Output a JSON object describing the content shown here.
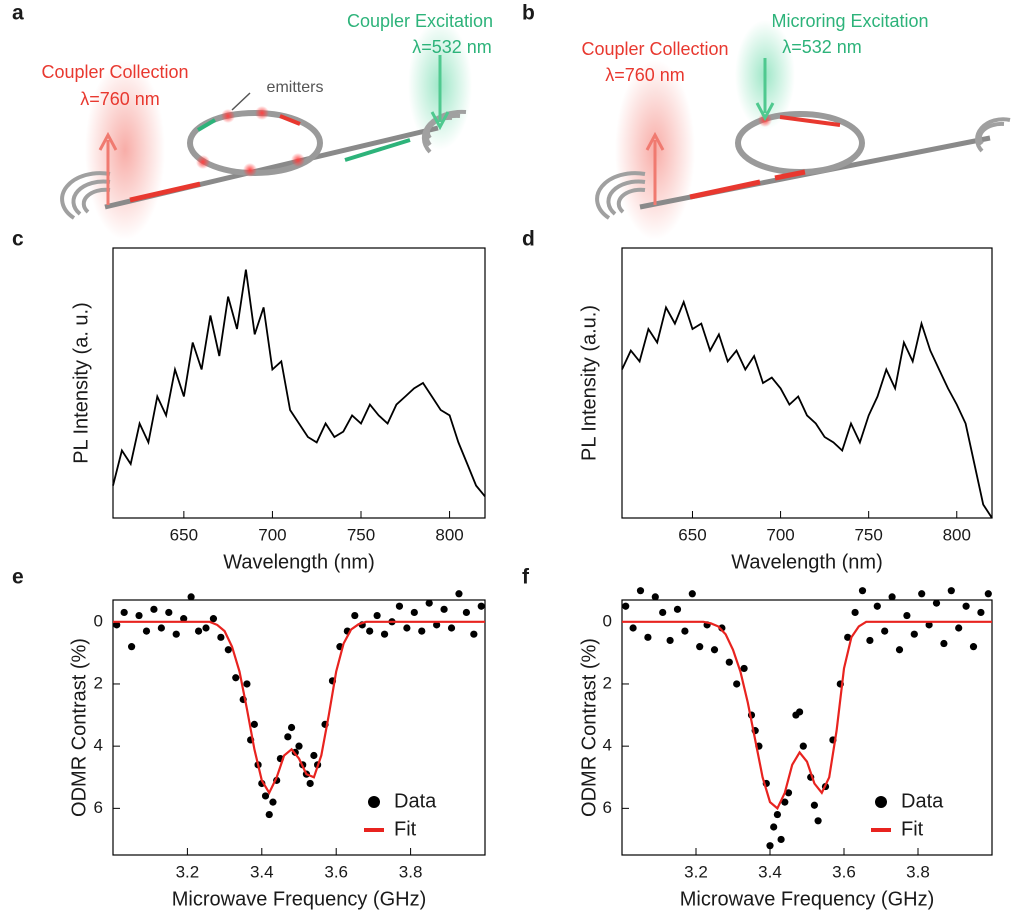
{
  "diagrams": [
    {
      "label": "a",
      "collection": "Coupler Collection",
      "collection_wavelength": "λ=760 nm",
      "emitters": "emitters",
      "excitation": "Coupler Excitation",
      "excitation_wavelength": "λ=532 nm"
    },
    {
      "label": "b",
      "collection": "Coupler Collection",
      "collection_wavelength": "λ=760 nm",
      "excitation": "Microring Excitation",
      "excitation_wavelength": "λ=532 nm"
    }
  ],
  "chart_data": [
    {
      "type": "line",
      "label": "c",
      "xlabel": "Wavelength (nm)",
      "ylabel": "PL Intensity (a. u.)",
      "color": "#000000",
      "x": [
        610,
        615,
        620,
        625,
        630,
        635,
        640,
        645,
        650,
        655,
        660,
        665,
        670,
        675,
        680,
        685,
        690,
        695,
        700,
        705,
        710,
        715,
        720,
        725,
        730,
        735,
        740,
        745,
        750,
        755,
        760,
        765,
        770,
        775,
        780,
        785,
        790,
        795,
        800,
        805,
        810,
        815,
        820
      ],
      "values": [
        12,
        25,
        20,
        35,
        28,
        45,
        38,
        55,
        45,
        65,
        55,
        75,
        60,
        82,
        70,
        92,
        68,
        78,
        55,
        58,
        40,
        35,
        30,
        28,
        35,
        30,
        32,
        38,
        35,
        42,
        38,
        35,
        42,
        45,
        48,
        50,
        45,
        40,
        38,
        28,
        20,
        12,
        8
      ],
      "xlim": [
        610,
        820
      ],
      "ylim": [
        0,
        100
      ],
      "xticks": [
        650,
        700,
        750,
        800
      ]
    },
    {
      "type": "line",
      "label": "d",
      "xlabel": "Wavelength (nm)",
      "ylabel": "PL  Intensity (a.u.)",
      "color": "#000000",
      "x": [
        610,
        615,
        620,
        625,
        630,
        635,
        640,
        645,
        650,
        655,
        660,
        665,
        670,
        675,
        680,
        685,
        690,
        695,
        700,
        705,
        710,
        715,
        720,
        725,
        730,
        735,
        740,
        745,
        750,
        755,
        760,
        765,
        770,
        775,
        780,
        785,
        790,
        795,
        800,
        805,
        810,
        815,
        820
      ],
      "values": [
        55,
        62,
        58,
        70,
        65,
        78,
        72,
        80,
        70,
        72,
        62,
        68,
        58,
        62,
        55,
        60,
        50,
        52,
        48,
        42,
        45,
        38,
        35,
        30,
        28,
        25,
        35,
        28,
        38,
        45,
        55,
        48,
        65,
        58,
        72,
        62,
        55,
        48,
        42,
        35,
        20,
        5,
        0
      ],
      "xlim": [
        610,
        820
      ],
      "ylim": [
        0,
        100
      ],
      "xticks": [
        650,
        700,
        750,
        800
      ]
    },
    {
      "type": "scatter",
      "label": "e",
      "xlabel": "Microwave Frequency (GHz)",
      "ylabel": "ODMR Contrast (%)",
      "legend": "lower right",
      "xlim": [
        3.0,
        4.0
      ],
      "ylim": [
        7.5,
        -0.7
      ],
      "xticks": [
        3.2,
        3.4,
        3.6,
        3.8
      ],
      "yticks": [
        0,
        2,
        4,
        6
      ],
      "series": [
        {
          "name": "Data",
          "mode": "markers",
          "color": "#000000",
          "x": [
            3.01,
            3.03,
            3.05,
            3.07,
            3.09,
            3.11,
            3.13,
            3.15,
            3.17,
            3.19,
            3.21,
            3.23,
            3.25,
            3.27,
            3.29,
            3.31,
            3.33,
            3.35,
            3.37,
            3.39,
            3.41,
            3.43,
            3.45,
            3.47,
            3.49,
            3.51,
            3.53,
            3.55,
            3.57,
            3.59,
            3.61,
            3.63,
            3.65,
            3.67,
            3.69,
            3.71,
            3.73,
            3.75,
            3.77,
            3.79,
            3.81,
            3.83,
            3.85,
            3.87,
            3.89,
            3.91,
            3.93,
            3.95,
            3.97,
            3.99,
            3.36,
            3.38,
            3.4,
            3.42,
            3.44,
            3.48,
            3.52,
            3.54,
            3.5
          ],
          "values": [
            0.1,
            -0.3,
            0.8,
            -0.2,
            0.3,
            -0.4,
            0.2,
            -0.3,
            0.4,
            -0.1,
            -0.8,
            0.3,
            0.2,
            -0.1,
            0.5,
            0.9,
            1.8,
            2.5,
            3.8,
            4.6,
            5.6,
            5.8,
            4.4,
            3.7,
            4.2,
            4.6,
            5.2,
            4.6,
            3.3,
            1.9,
            0.8,
            0.3,
            -0.2,
            0.1,
            0.3,
            -0.2,
            0.4,
            0.0,
            -0.5,
            0.2,
            -0.3,
            0.3,
            -0.6,
            0.1,
            -0.4,
            0.2,
            -0.9,
            -0.3,
            0.4,
            -0.5,
            2.0,
            3.3,
            5.2,
            6.2,
            5.1,
            3.4,
            4.9,
            4.3,
            4.0
          ]
        },
        {
          "name": "Fit",
          "mode": "lines",
          "color": "#e8231f",
          "x": [
            3.0,
            3.26,
            3.28,
            3.3,
            3.32,
            3.34,
            3.36,
            3.38,
            3.4,
            3.42,
            3.44,
            3.46,
            3.48,
            3.5,
            3.52,
            3.54,
            3.56,
            3.58,
            3.6,
            3.62,
            3.64,
            3.66,
            3.68,
            4.0
          ],
          "values": [
            0,
            0,
            0.1,
            0.3,
            0.8,
            1.6,
            2.8,
            4.1,
            5.1,
            5.5,
            5.0,
            4.3,
            4.1,
            4.4,
            4.9,
            5.0,
            4.3,
            3.0,
            1.6,
            0.7,
            0.25,
            0.08,
            0,
            0
          ]
        }
      ]
    },
    {
      "type": "scatter",
      "label": "f",
      "xlabel": "Microwave Frequency (GHz)",
      "ylabel": "ODMR Contrast (%)",
      "legend": "lower right",
      "xlim": [
        3.0,
        4.0
      ],
      "ylim": [
        7.5,
        -0.7
      ],
      "xticks": [
        3.2,
        3.4,
        3.6,
        3.8
      ],
      "yticks": [
        0,
        2,
        4,
        6
      ],
      "series": [
        {
          "name": "Data",
          "mode": "markers",
          "color": "#000000",
          "x": [
            3.01,
            3.03,
            3.05,
            3.07,
            3.09,
            3.11,
            3.13,
            3.15,
            3.17,
            3.19,
            3.21,
            3.23,
            3.25,
            3.27,
            3.29,
            3.31,
            3.33,
            3.35,
            3.37,
            3.39,
            3.41,
            3.43,
            3.45,
            3.47,
            3.49,
            3.51,
            3.53,
            3.55,
            3.57,
            3.59,
            3.61,
            3.63,
            3.65,
            3.67,
            3.69,
            3.71,
            3.73,
            3.75,
            3.77,
            3.79,
            3.81,
            3.83,
            3.85,
            3.87,
            3.89,
            3.91,
            3.93,
            3.95,
            3.97,
            3.99,
            3.4,
            3.42,
            3.44,
            3.48,
            3.52,
            3.36
          ],
          "values": [
            -0.5,
            0.2,
            -1.0,
            0.5,
            -0.8,
            -0.3,
            0.6,
            -0.4,
            0.3,
            -0.9,
            0.8,
            0.1,
            0.9,
            0.2,
            1.3,
            2.0,
            1.5,
            3.0,
            4.0,
            5.2,
            6.6,
            7.0,
            5.5,
            3.0,
            4.0,
            5.0,
            6.4,
            5.3,
            3.8,
            2.0,
            0.5,
            -0.3,
            -1.0,
            0.6,
            -0.5,
            0.3,
            -0.8,
            0.9,
            -0.2,
            0.4,
            -0.9,
            0.1,
            -0.6,
            0.7,
            -1.0,
            0.2,
            -0.5,
            0.8,
            -0.3,
            -0.9,
            7.2,
            6.2,
            5.8,
            2.9,
            5.9,
            3.5
          ]
        },
        {
          "name": "Fit",
          "mode": "lines",
          "color": "#e8231f",
          "x": [
            3.0,
            3.22,
            3.24,
            3.26,
            3.28,
            3.3,
            3.32,
            3.34,
            3.36,
            3.38,
            3.4,
            3.42,
            3.44,
            3.46,
            3.48,
            3.5,
            3.52,
            3.54,
            3.56,
            3.58,
            3.6,
            3.62,
            3.64,
            3.66,
            4.0
          ],
          "values": [
            0,
            0,
            0.05,
            0.15,
            0.4,
            0.9,
            1.6,
            2.6,
            3.8,
            5.0,
            5.8,
            6.0,
            5.5,
            4.6,
            4.2,
            4.5,
            5.2,
            5.5,
            5.0,
            3.5,
            1.5,
            0.5,
            0.15,
            0,
            0
          ]
        }
      ]
    }
  ]
}
